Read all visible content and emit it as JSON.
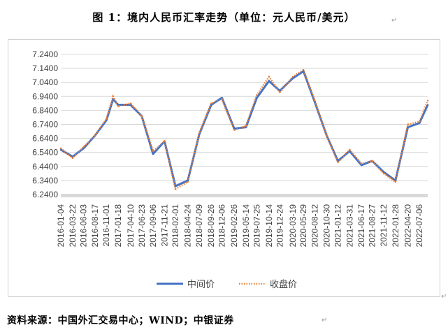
{
  "figure_title": "图 1：境内人民币汇率走势（单位：元人民币/美元）",
  "source_text": "资料来源：中国外汇交易中心；WIND；中银证券",
  "para_mark": "↵",
  "chart_data": {
    "type": "line",
    "title": "",
    "xlabel": "",
    "ylabel": "",
    "ylim": [
      6.24,
      7.24
    ],
    "yticks": [
      "7.2400",
      "7.1400",
      "7.0400",
      "6.9400",
      "6.8400",
      "6.7400",
      "6.6400",
      "6.5400",
      "6.4400",
      "6.3400",
      "6.2400"
    ],
    "xticks": [
      "2016-01-04",
      "2016-03-22",
      "2016-06-03",
      "2016-08-17",
      "2016-11-01",
      "2017-01-18",
      "2017-04-10",
      "2017-06-23",
      "2017-09-06",
      "2017-11-21",
      "2018-02-01",
      "2018-04-24",
      "2018-07-09",
      "2018-09-26",
      "2018-12-06",
      "2019-02-26",
      "2019-05-14",
      "2019-07-25",
      "2019-10-14",
      "2019-12-24",
      "2020-03-19",
      "2020-05-29",
      "2020-08-12",
      "2020-10-30",
      "2021-01-12",
      "2021-03-31",
      "2021-06-17",
      "2021-08-27",
      "2021-11-12",
      "2022-01-28",
      "2022-04-20",
      "2022-07-06"
    ],
    "grid": true,
    "legend_position": "bottom",
    "colors": {
      "mid": "#4472c4",
      "close": "#ed7d31"
    },
    "series": [
      {
        "name": "中间价",
        "x": [
          "2016-01-04",
          "2016-03-22",
          "2016-06-03",
          "2016-08-17",
          "2016-11-01",
          "2016-12-15",
          "2017-01-18",
          "2017-04-10",
          "2017-06-23",
          "2017-09-06",
          "2017-11-21",
          "2018-02-01",
          "2018-04-24",
          "2018-07-09",
          "2018-09-26",
          "2018-12-06",
          "2019-02-26",
          "2019-05-14",
          "2019-07-25",
          "2019-10-14",
          "2019-12-24",
          "2020-03-19",
          "2020-05-29",
          "2020-08-12",
          "2020-10-30",
          "2021-01-12",
          "2021-03-31",
          "2021-06-17",
          "2021-08-27",
          "2021-11-12",
          "2022-01-28",
          "2022-04-20",
          "2022-07-06",
          "2022-08-30"
        ],
        "values": [
          6.56,
          6.51,
          6.57,
          6.66,
          6.77,
          6.92,
          6.88,
          6.88,
          6.8,
          6.53,
          6.62,
          6.3,
          6.34,
          6.67,
          6.88,
          6.93,
          6.71,
          6.72,
          6.93,
          7.05,
          6.98,
          7.07,
          7.12,
          6.9,
          6.66,
          6.48,
          6.55,
          6.45,
          6.48,
          6.4,
          6.34,
          6.72,
          6.75,
          6.88
        ]
      },
      {
        "name": "收盘价",
        "x": [
          "2016-01-04",
          "2016-03-22",
          "2016-06-03",
          "2016-08-17",
          "2016-11-01",
          "2016-12-15",
          "2017-01-18",
          "2017-04-10",
          "2017-06-23",
          "2017-09-06",
          "2017-11-21",
          "2018-02-01",
          "2018-04-24",
          "2018-07-09",
          "2018-09-26",
          "2018-12-06",
          "2019-02-26",
          "2019-05-14",
          "2019-07-25",
          "2019-10-14",
          "2019-12-24",
          "2020-03-19",
          "2020-05-29",
          "2020-08-12",
          "2020-10-30",
          "2021-01-12",
          "2021-03-31",
          "2021-06-17",
          "2021-08-27",
          "2021-11-12",
          "2022-01-28",
          "2022-04-20",
          "2022-07-06",
          "2022-08-30"
        ],
        "values": [
          6.57,
          6.5,
          6.58,
          6.66,
          6.78,
          6.94,
          6.87,
          6.89,
          6.8,
          6.55,
          6.62,
          6.28,
          6.33,
          6.68,
          6.89,
          6.92,
          6.7,
          6.73,
          6.95,
          7.08,
          6.97,
          7.08,
          7.13,
          6.91,
          6.66,
          6.47,
          6.56,
          6.46,
          6.48,
          6.39,
          6.33,
          6.74,
          6.76,
          6.91
        ]
      }
    ]
  }
}
